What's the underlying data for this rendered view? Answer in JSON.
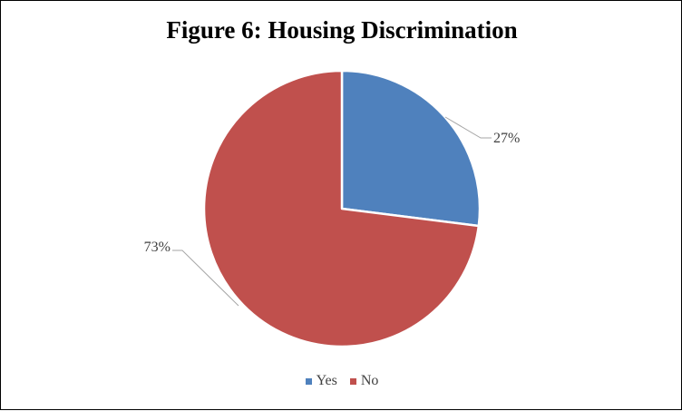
{
  "chart_data": {
    "type": "pie",
    "title": "Figure 6: Housing Discrimination",
    "categories": [
      "Yes",
      "No"
    ],
    "values": [
      27,
      73
    ],
    "data_labels": [
      "27%",
      "73%"
    ],
    "colors": [
      "#4f81bd",
      "#c0504d"
    ],
    "legend": {
      "position": "bottom",
      "entries": [
        "Yes",
        "No"
      ]
    },
    "start_angle": "12 o'clock",
    "direction": "clockwise"
  }
}
